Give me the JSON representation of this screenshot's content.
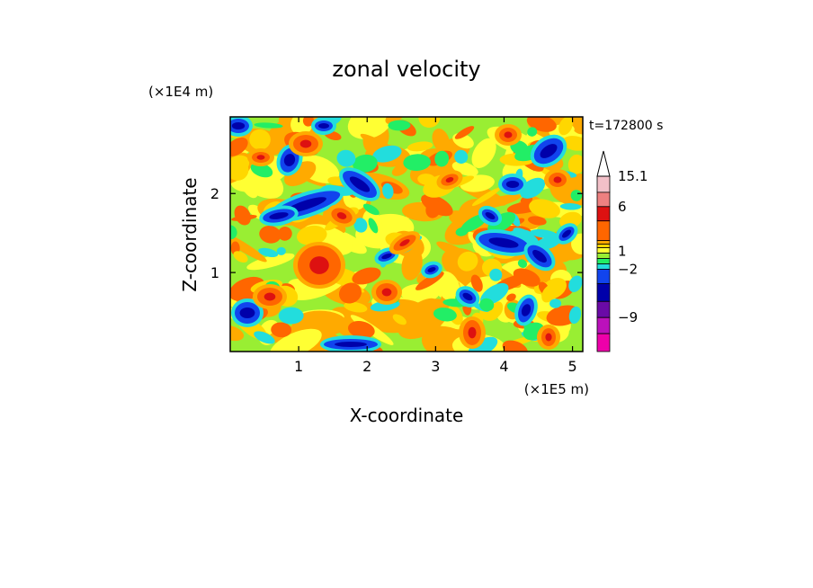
{
  "chart_data": {
    "type": "heatmap",
    "title": "zonal velocity",
    "xlabel": "X-coordinate",
    "ylabel": "Z-coordinate",
    "x_scale_label": "(×1E5 m)",
    "y_scale_label": "(×1E4 m)",
    "time_label": "t=172800 s",
    "xlim": [
      0,
      5.15
    ],
    "ylim": [
      0,
      2.97
    ],
    "x_ticks": [
      "1",
      "2",
      "3",
      "4",
      "5"
    ],
    "y_ticks": [
      "1",
      "2"
    ],
    "colorbar": {
      "labels": [
        "15.1",
        "6",
        "1",
        "−2",
        "−9"
      ],
      "label_values": [
        15.1,
        6,
        1,
        -2,
        -9
      ],
      "levels": [
        {
          "color": "#f2c0c8",
          "range": [
            10.5,
            15.1
          ]
        },
        {
          "color": "#ee8080",
          "range": [
            8,
            10.5
          ]
        },
        {
          "color": "#dd1111",
          "range": [
            6,
            8
          ]
        },
        {
          "color": "#ff6600",
          "range": [
            3,
            6
          ]
        },
        {
          "color": "#ffaa00",
          "range": [
            2,
            3
          ]
        },
        {
          "color": "#ffd700",
          "range": [
            1.5,
            2
          ]
        },
        {
          "color": "#ffff33",
          "range": [
            1,
            1.5
          ]
        },
        {
          "color": "#99ee33",
          "range": [
            0,
            1
          ]
        },
        {
          "color": "#22ee66",
          "range": [
            -1,
            0
          ]
        },
        {
          "color": "#22dddd",
          "range": [
            -2,
            -1
          ]
        },
        {
          "color": "#1144ee",
          "range": [
            -3.5,
            -2
          ]
        },
        {
          "color": "#0000aa",
          "range": [
            -6,
            -3.5
          ]
        },
        {
          "color": "#6a0aa6",
          "range": [
            -9,
            -6
          ]
        },
        {
          "color": "#bb11bb",
          "range": [
            -12,
            -9
          ]
        },
        {
          "color": "#ee00aa",
          "range": [
            -15.1,
            -12
          ]
        }
      ],
      "extend": "max"
    }
  }
}
